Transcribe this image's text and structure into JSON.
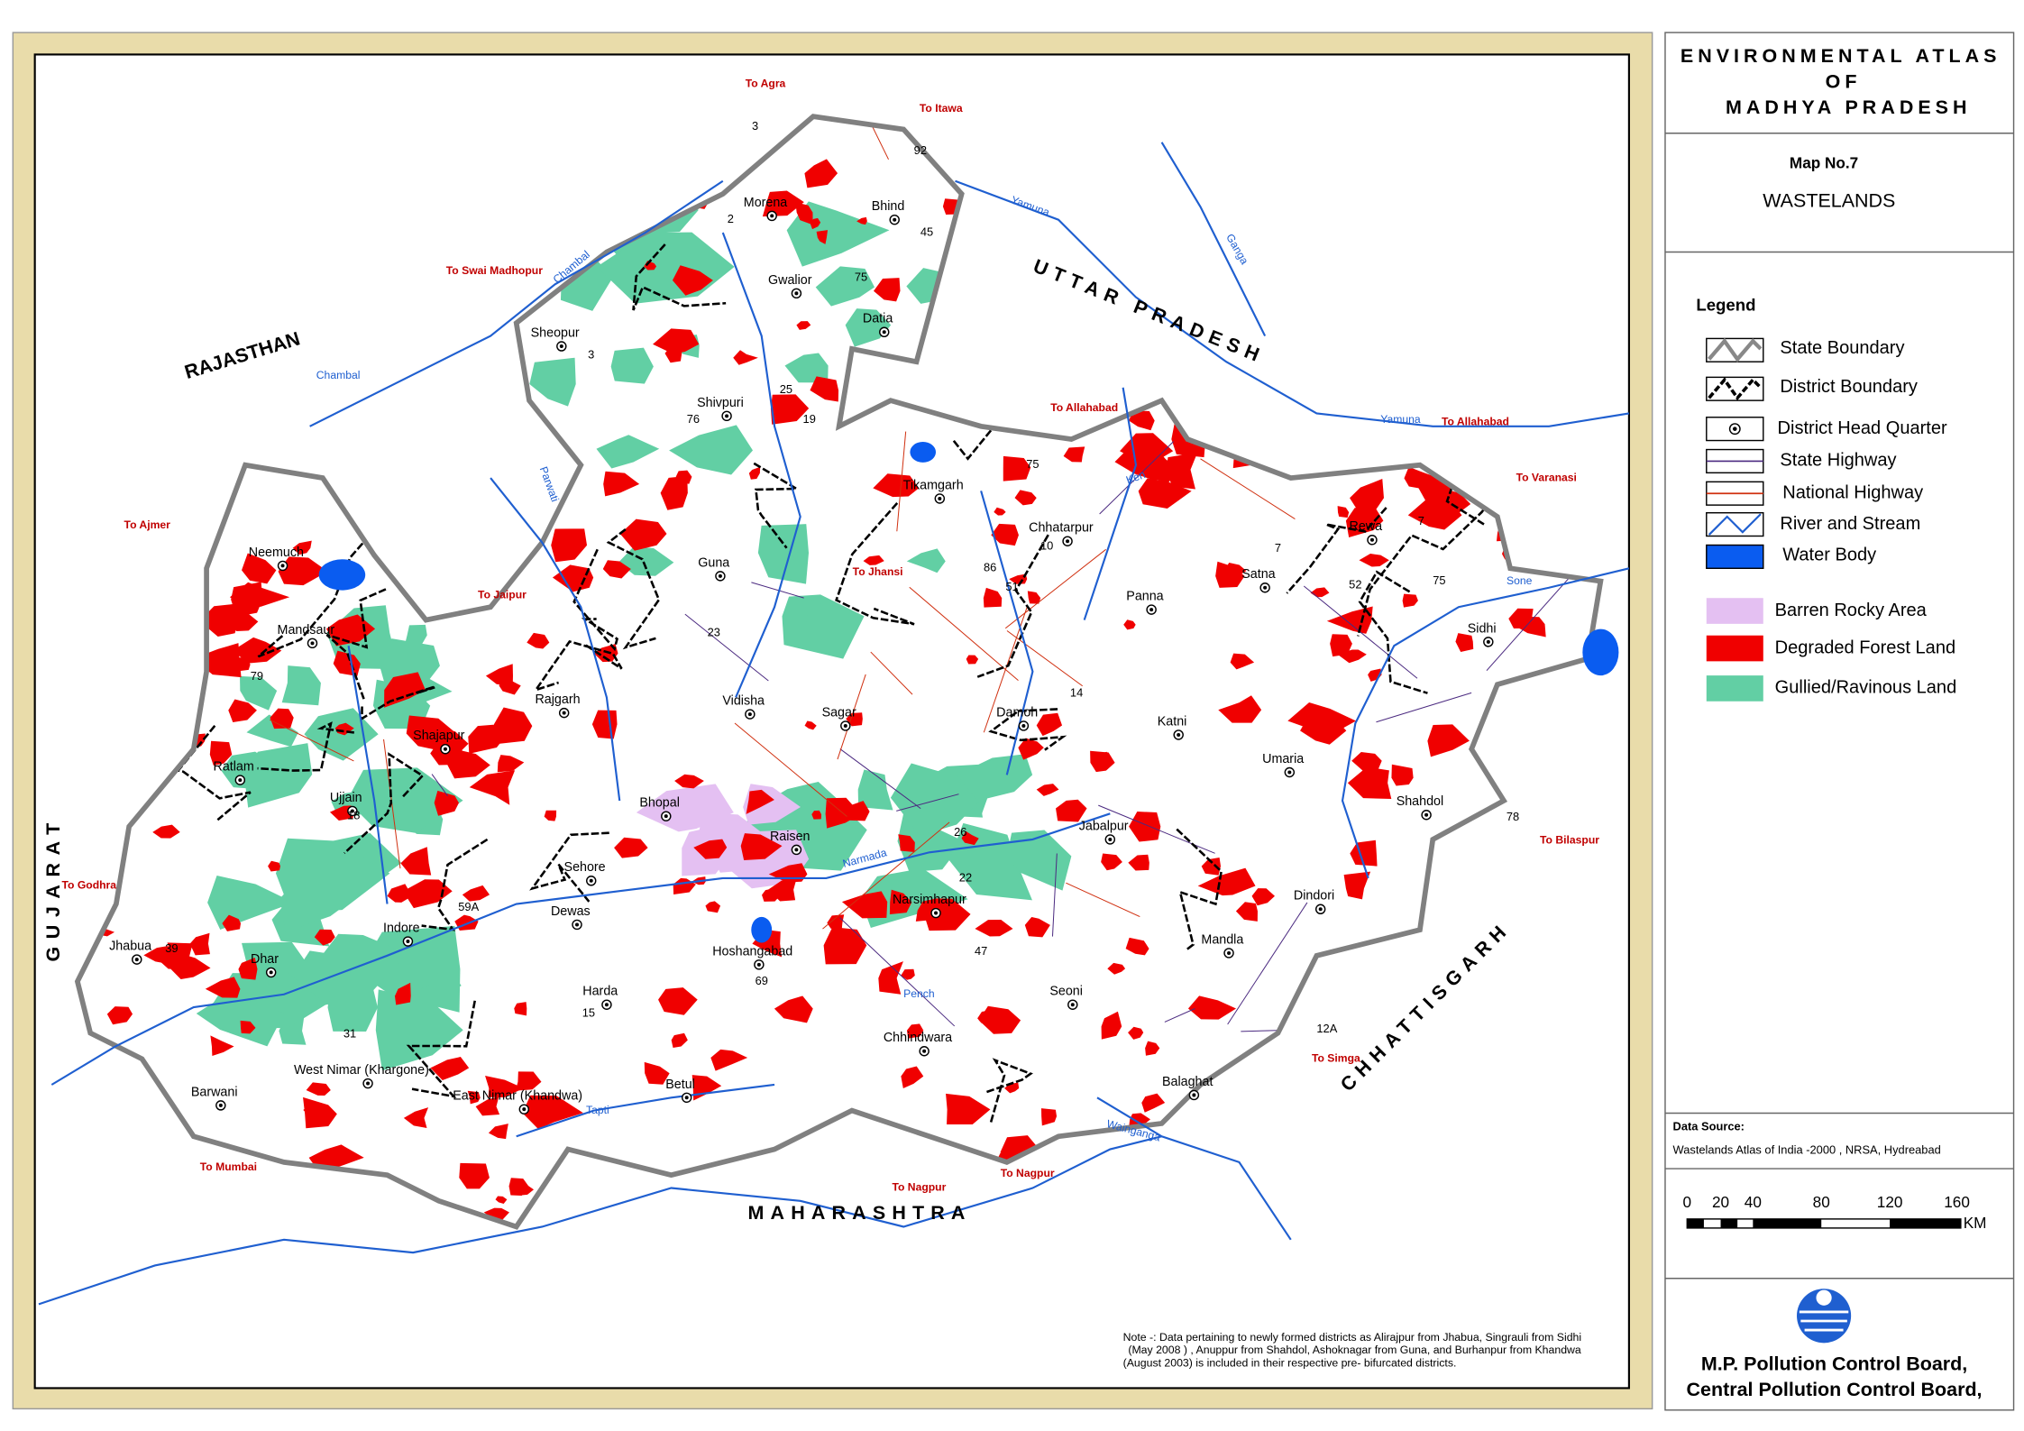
{
  "title": {
    "line1": "ENVIRONMENTAL ATLAS",
    "line2": "OF",
    "line3": "MADHYA PRADESH"
  },
  "map_no": "Map No.7",
  "subtitle": "WASTELANDS",
  "legend": {
    "title": "Legend",
    "items": [
      "State Boundary",
      "District Boundary",
      "District Head Quarter",
      "State Highway",
      "National  Highway",
      "River and Stream",
      "Water Body",
      "Barren Rocky Area",
      "Degraded Forest Land",
      "Gullied/Ravinous Land"
    ]
  },
  "data_source": {
    "label": "Data Source:",
    "text": "Wastelands Atlas of India -2000 ,  NRSA, Hydreabad"
  },
  "scale": {
    "ticks": [
      "0",
      "20",
      "40",
      "80",
      "120",
      "160"
    ],
    "unit": "KM"
  },
  "publishers": [
    "M.P. Pollution Control Board,",
    "Central  Pollution Control Board,"
  ],
  "note": [
    "Note -: Data pertaining to newly formed districts as Alirajpur from Jhabua, Singrauli from Sidhi",
    "(May 2008 ) , Anuppur  from Shahdol, Ashoknagar from Guna, and Burhanpur from Khandwa",
    "(August 2003) is included in their respective pre- bifurcated districts."
  ],
  "map": {
    "states": [
      "RAJASTHAN",
      "UTTAR PRADESH",
      "GUJARAT",
      "MAHARASHTRA",
      "CHHATTISGARH"
    ],
    "districts": [
      "Morena",
      "Bhind",
      "Gwalior",
      "Datia",
      "Sheopur",
      "Shivpuri",
      "Tikamgarh",
      "Chhatarpur",
      "Panna",
      "Satna",
      "Rewa",
      "Sidhi",
      "Guna",
      "Neemuch",
      "Mandsaur",
      "Rajgarh",
      "Vidisha",
      "Sagar",
      "Damoh",
      "Katni",
      "Umaria",
      "Shahdol",
      "Shajapur",
      "Ratlam",
      "Ujjain",
      "Bhopal",
      "Raisen",
      "Jabalpur",
      "Sehore",
      "Dewas",
      "Narsimhapur",
      "Dindori",
      "Mandla",
      "Jhabua",
      "Dhar",
      "Indore",
      "Hoshangabad",
      "Harda",
      "Seoni",
      "Chhindwara",
      "Barwani",
      "West Nimar (Khargone)",
      "East Nimar (Khandwa)",
      "Betul",
      "Balaghat"
    ],
    "destinations": [
      "To Agra",
      "To Itawa",
      "To Swai Madhopur",
      "To Allahabad",
      "To Allahabad",
      "To Varanasi",
      "To Ajmer",
      "To Jaipur",
      "To Jhansi",
      "To Godhra",
      "To Bilaspur",
      "To Simga",
      "To Mumbai",
      "To Nagpur",
      "To Nagpur"
    ],
    "rivers": [
      "Chambal",
      "Chambal",
      "Yamuna",
      "Ganga",
      "Yamuna",
      "Sone",
      "Parwati",
      "Narmada",
      "Pench",
      "Wainganga",
      "Tapti",
      "Ken"
    ],
    "highways": [
      "3",
      "92",
      "2",
      "45",
      "75",
      "3",
      "25",
      "76",
      "19",
      "75",
      "86",
      "10",
      "51",
      "7",
      "7",
      "75",
      "52",
      "23",
      "14",
      "79",
      "59A",
      "18",
      "39",
      "31",
      "15",
      "69",
      "47",
      "22",
      "26",
      "12A",
      "78"
    ]
  }
}
